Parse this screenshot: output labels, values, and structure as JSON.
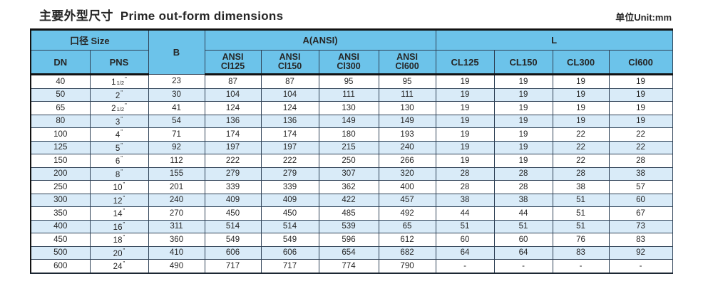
{
  "page": {
    "title_zh": "主要外型尺寸",
    "title_en": "Prime out-form dimensions",
    "unit_label": "单位Unit:mm"
  },
  "colors": {
    "header_bg": "#6cc3ea",
    "stripe_bg": "#d9ebf8",
    "grid_line": "#2f4257",
    "heavy_line": "#121212",
    "text": "#262626"
  },
  "table": {
    "inch_mark": "\"",
    "header": {
      "size_group": "口径 Size",
      "dn": "DN",
      "pns": "PNS",
      "b": "B",
      "a_group": "A(ANSI)",
      "a_cols": [
        {
          "line1": "ANSI",
          "line2": "Cl125"
        },
        {
          "line1": "ANSI",
          "line2": "Cl150"
        },
        {
          "line1": "ANSI",
          "line2": "Cl300"
        },
        {
          "line1": "ANSI",
          "line2": "Cl600"
        }
      ],
      "l_group": "L",
      "l_cols": [
        "CL125",
        "CL150",
        "CL300",
        "Cl600"
      ]
    },
    "rows": [
      {
        "dn": "40",
        "pns_num": "1",
        "pns_frac": "1/2",
        "b": "23",
        "a": [
          "87",
          "87",
          "95",
          "95"
        ],
        "l": [
          "19",
          "19",
          "19",
          "19"
        ]
      },
      {
        "dn": "50",
        "pns_num": "2",
        "pns_frac": "",
        "b": "30",
        "a": [
          "104",
          "104",
          "111",
          "111"
        ],
        "l": [
          "19",
          "19",
          "19",
          "19"
        ]
      },
      {
        "dn": "65",
        "pns_num": "2",
        "pns_frac": "1/2",
        "b": "41",
        "a": [
          "124",
          "124",
          "130",
          "130"
        ],
        "l": [
          "19",
          "19",
          "19",
          "19"
        ]
      },
      {
        "dn": "80",
        "pns_num": "3",
        "pns_frac": "",
        "b": "54",
        "a": [
          "136",
          "136",
          "149",
          "149"
        ],
        "l": [
          "19",
          "19",
          "19",
          "19"
        ]
      },
      {
        "dn": "100",
        "pns_num": "4",
        "pns_frac": "",
        "b": "71",
        "a": [
          "174",
          "174",
          "180",
          "193"
        ],
        "l": [
          "19",
          "19",
          "22",
          "22"
        ]
      },
      {
        "dn": "125",
        "pns_num": "5",
        "pns_frac": "",
        "b": "92",
        "a": [
          "197",
          "197",
          "215",
          "240"
        ],
        "l": [
          "19",
          "19",
          "22",
          "22"
        ]
      },
      {
        "dn": "150",
        "pns_num": "6",
        "pns_frac": "",
        "b": "112",
        "a": [
          "222",
          "222",
          "250",
          "266"
        ],
        "l": [
          "19",
          "19",
          "22",
          "28"
        ]
      },
      {
        "dn": "200",
        "pns_num": "8",
        "pns_frac": "",
        "b": "155",
        "a": [
          "279",
          "279",
          "307",
          "320"
        ],
        "l": [
          "28",
          "28",
          "28",
          "38"
        ]
      },
      {
        "dn": "250",
        "pns_num": "10",
        "pns_frac": "",
        "b": "201",
        "a": [
          "339",
          "339",
          "362",
          "400"
        ],
        "l": [
          "28",
          "28",
          "38",
          "57"
        ]
      },
      {
        "dn": "300",
        "pns_num": "12",
        "pns_frac": "",
        "b": "240",
        "a": [
          "409",
          "409",
          "422",
          "457"
        ],
        "l": [
          "38",
          "38",
          "51",
          "60"
        ]
      },
      {
        "dn": "350",
        "pns_num": "14",
        "pns_frac": "",
        "b": "270",
        "a": [
          "450",
          "450",
          "485",
          "492"
        ],
        "l": [
          "44",
          "44",
          "51",
          "67"
        ]
      },
      {
        "dn": "400",
        "pns_num": "16",
        "pns_frac": "",
        "b": "311",
        "a": [
          "514",
          "514",
          "539",
          "65"
        ],
        "l": [
          "51",
          "51",
          "51",
          "73"
        ]
      },
      {
        "dn": "450",
        "pns_num": "18",
        "pns_frac": "",
        "b": "360",
        "a": [
          "549",
          "549",
          "596",
          "612"
        ],
        "l": [
          "60",
          "60",
          "76",
          "83"
        ]
      },
      {
        "dn": "500",
        "pns_num": "20",
        "pns_frac": "",
        "b": "410",
        "a": [
          "606",
          "606",
          "654",
          "682"
        ],
        "l": [
          "64",
          "64",
          "83",
          "92"
        ]
      },
      {
        "dn": "600",
        "pns_num": "24",
        "pns_frac": "",
        "b": "490",
        "a": [
          "717",
          "717",
          "774",
          "790"
        ],
        "l": [
          "-",
          "-",
          "-",
          "-"
        ]
      }
    ]
  }
}
